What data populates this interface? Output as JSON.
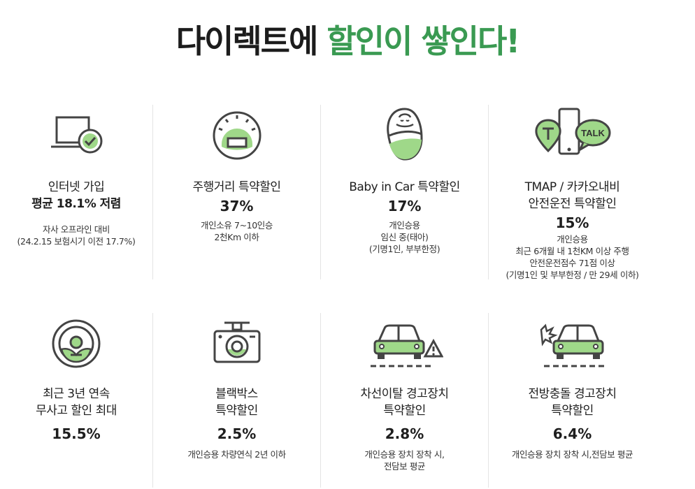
{
  "headline": {
    "plain": "다이렉트에",
    "green": "할인이 쌓인다!"
  },
  "colors": {
    "accent": "#3a9a52",
    "highlight": "#c8ebc0",
    "icon_fill": "#9fd889",
    "icon_stroke": "#444444"
  },
  "items": [
    {
      "icon": "laptop-check-icon",
      "title_lines": [
        "인터넷 가입",
        "평균 18.1% 저렴"
      ],
      "rate": "",
      "desc_lines": [
        "자사 오프라인 대비",
        "(24.2.15 보험시기 이전 17.7%)"
      ]
    },
    {
      "icon": "odometer-icon",
      "title_lines": [
        "주행거리 특약할인"
      ],
      "rate": "37%",
      "desc_lines": [
        "개인소유 7~10인승",
        "2천Km 이하"
      ]
    },
    {
      "icon": "baby-swaddle-icon",
      "title_lines": [
        "Baby in Car 특약할인"
      ],
      "rate": "17%",
      "desc_lines": [
        "개인승용",
        "임신 중(태아)",
        "(기명1인, 부부한정)"
      ]
    },
    {
      "icon": "tmap-kakao-talk-icon",
      "title_lines": [
        "TMAP / 카카오내비",
        "안전운전 특약할인"
      ],
      "rate": "15%",
      "desc_lines": [
        "개인승용",
        "최근 6개월 내 1천KM 이상 주행",
        "안전운전점수 71점 이상",
        "(기명1인 및 부부한정 / 만 29세 이하)"
      ]
    },
    {
      "icon": "steering-wheel-icon",
      "title_lines": [
        "최근 3년 연속",
        "무사고 할인 최대"
      ],
      "rate": "15.5%",
      "desc_lines": []
    },
    {
      "icon": "dashcam-icon",
      "title_lines": [
        "블랙박스",
        "특약할인"
      ],
      "rate": "2.5%",
      "desc_lines": [
        "개인승용 차량연식 2년 이하"
      ]
    },
    {
      "icon": "lane-departure-warning-icon",
      "title_lines": [
        "차선이탈 경고장치",
        "특약할인"
      ],
      "rate": "2.8%",
      "desc_lines": [
        "개인승용 장치 장착 시,",
        "전담보 평균"
      ]
    },
    {
      "icon": "forward-collision-warning-icon",
      "title_lines": [
        "전방충돌 경고장치",
        "특약할인"
      ],
      "rate": "6.4%",
      "desc_lines": [
        "개인승용 장치 장착 시,전담보 평균"
      ]
    }
  ]
}
